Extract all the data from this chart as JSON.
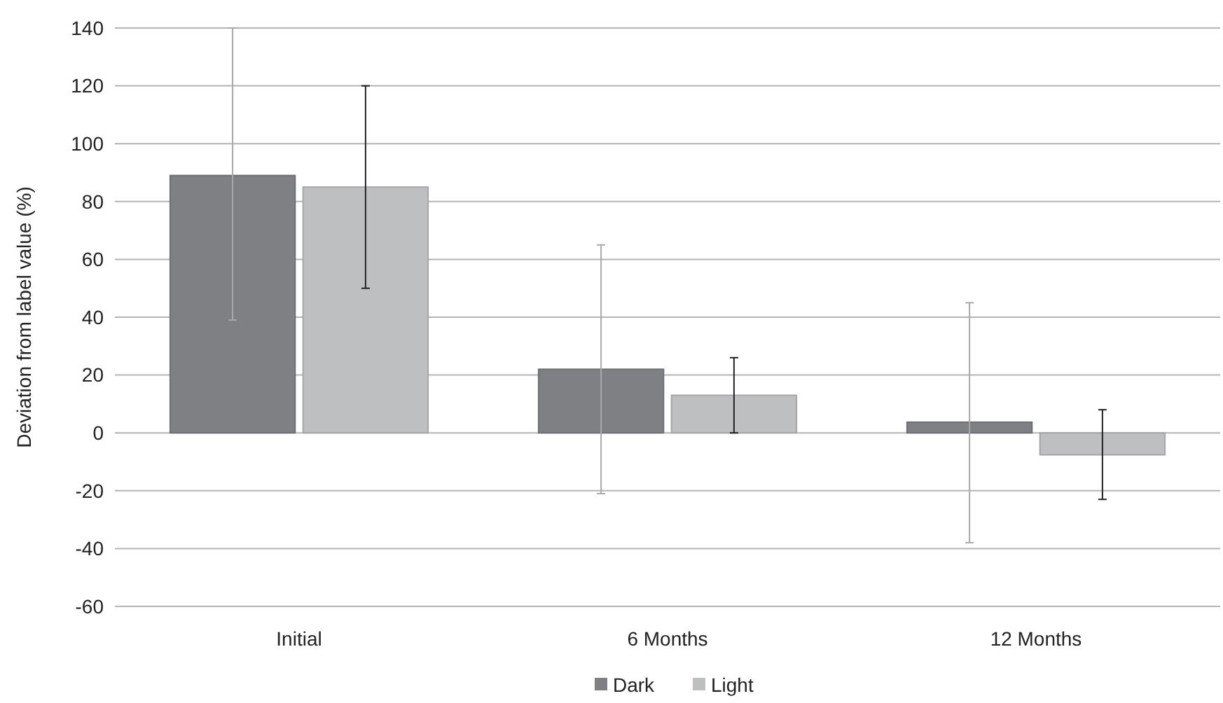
{
  "chart_data": {
    "type": "bar",
    "ylabel": "Deviation from label value (%)",
    "categories": [
      "Initial",
      "6 Months",
      "12 Months"
    ],
    "series": [
      {
        "name": "Dark",
        "color": "#7f8084",
        "values": [
          89,
          22,
          3.7
        ],
        "errors": [
          [
            39,
            140
          ],
          [
            -21,
            65
          ],
          [
            -38,
            45
          ]
        ]
      },
      {
        "name": "Light",
        "color": "#bebfc1",
        "values": [
          85,
          13,
          -7.6
        ],
        "errors": [
          [
            50,
            120
          ],
          [
            0,
            26
          ],
          [
            -23,
            8
          ]
        ]
      }
    ],
    "ylim": [
      -60,
      140
    ],
    "yticks": [
      -60,
      -40,
      -20,
      0,
      20,
      40,
      60,
      80,
      100,
      120,
      140
    ],
    "grid": "y",
    "legend": "bottom"
  }
}
